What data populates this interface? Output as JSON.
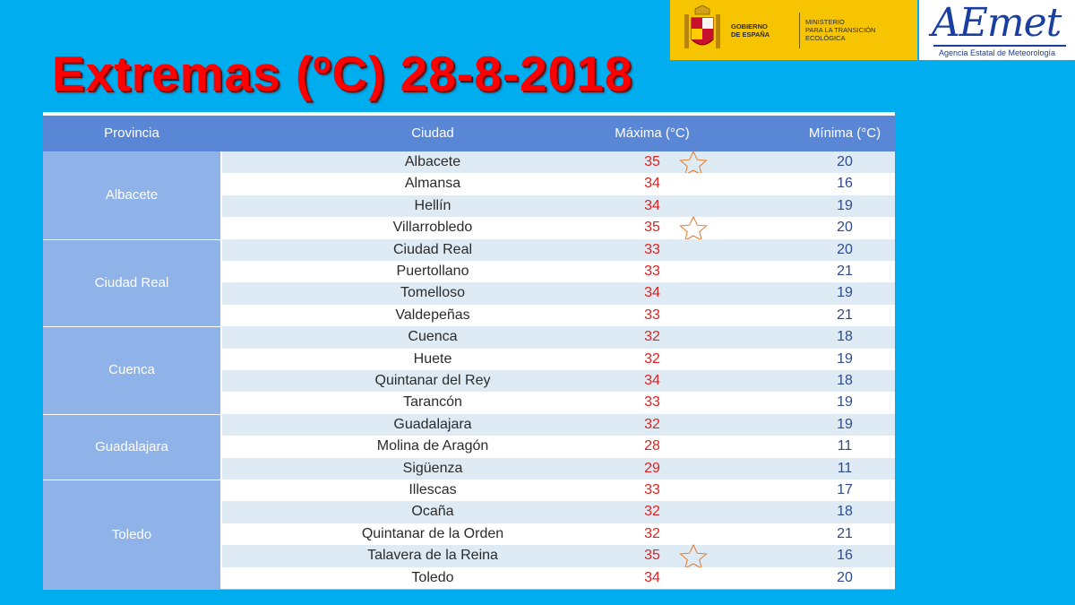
{
  "title": "Extremas (ºC) 28-8-2018",
  "logos": {
    "gov_line1": "GOBIERNO",
    "gov_line2": "DE ESPAÑA",
    "ministry_line1": "MINISTERIO",
    "ministry_line2": "PARA LA TRANSICIÓN ECOLÓGICA",
    "aemet_word": "AEmet",
    "aemet_sub": "Agencia Estatal de Meteorología"
  },
  "table": {
    "headers": [
      "Provincia",
      "Ciudad",
      "Máxima (°C)",
      "Mínima (°C)"
    ],
    "provinces": [
      {
        "name": "Albacete",
        "row_count": 4
      },
      {
        "name": "Ciudad Real",
        "row_count": 4
      },
      {
        "name": "Cuenca",
        "row_count": 4
      },
      {
        "name": "Guadalajara",
        "row_count": 3
      },
      {
        "name": "Toledo",
        "row_count": 5
      }
    ],
    "rows": [
      {
        "city": "Albacete",
        "max": "35",
        "min": "20",
        "star": true
      },
      {
        "city": "Almansa",
        "max": "34",
        "min": "16",
        "star": false
      },
      {
        "city": "Hellín",
        "max": "34",
        "min": "19",
        "star": false
      },
      {
        "city": "Villarrobledo",
        "max": "35",
        "min": "20",
        "star": true
      },
      {
        "city": "Ciudad Real",
        "max": "33",
        "min": "20",
        "star": false
      },
      {
        "city": "Puertollano",
        "max": "33",
        "min": "21",
        "star": false
      },
      {
        "city": "Tomelloso",
        "max": "34",
        "min": "19",
        "star": false
      },
      {
        "city": "Valdepeñas",
        "max": "33",
        "min": "21",
        "star": false
      },
      {
        "city": "Cuenca",
        "max": "32",
        "min": "18",
        "star": false
      },
      {
        "city": "Huete",
        "max": "32",
        "min": "19",
        "star": false
      },
      {
        "city": "Quintanar del Rey",
        "max": "34",
        "min": "18",
        "star": false
      },
      {
        "city": "Tarancón",
        "max": "33",
        "min": "19",
        "star": false
      },
      {
        "city": "Guadalajara",
        "max": "32",
        "min": "19",
        "star": false
      },
      {
        "city": "Molina de Aragón",
        "max": "28",
        "min": "11",
        "star": false
      },
      {
        "city": "Sigüenza",
        "max": "29",
        "min": "11",
        "star": false
      },
      {
        "city": "Illescas",
        "max": "33",
        "min": "17",
        "star": false
      },
      {
        "city": "Ocaña",
        "max": "32",
        "min": "18",
        "star": false
      },
      {
        "city": "Quintanar de la Orden",
        "max": "32",
        "min": "21",
        "star": false
      },
      {
        "city": "Talavera de la Reina",
        "max": "35",
        "min": "16",
        "star": true
      },
      {
        "city": "Toledo",
        "max": "34",
        "min": "20",
        "star": false
      }
    ]
  },
  "colors": {
    "background": "#00adef",
    "title": "#ff0000",
    "header": "#5a86d6",
    "province_cell": "#8fb3e8",
    "max_value": "#e02020",
    "min_value": "#2e4a8a",
    "star_outline": "#e8782a"
  }
}
